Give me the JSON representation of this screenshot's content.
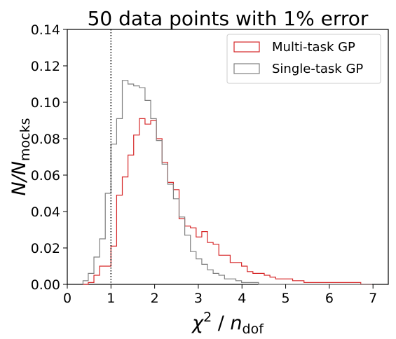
{
  "chart_data": {
    "type": "histogram",
    "title": "50 data points with 1% error",
    "xlabel": "χ² / n_dof",
    "ylabel": "N/N_mocks",
    "xlim": [
      0,
      7.35
    ],
    "ylim": [
      0,
      0.14
    ],
    "xticks": [
      "0",
      "1",
      "2",
      "3",
      "4",
      "5",
      "6",
      "7"
    ],
    "yticks": [
      "0.00",
      "0.02",
      "0.04",
      "0.06",
      "0.08",
      "0.10",
      "0.12",
      "0.14"
    ],
    "grid": false,
    "legend_position": "top-right",
    "reference_line": {
      "x": 1,
      "style": "dotted"
    },
    "bin_edges": [
      0.36,
      0.48,
      0.61,
      0.74,
      0.87,
      1.0,
      1.13,
      1.26,
      1.39,
      1.52,
      1.65,
      1.78,
      1.91,
      2.04,
      2.17,
      2.3,
      2.43,
      2.56,
      2.69,
      2.82,
      2.95,
      3.08,
      3.21,
      3.34,
      3.47,
      3.6,
      3.73,
      3.86,
      3.99,
      4.12,
      4.25,
      4.38,
      4.51,
      4.64,
      4.77,
      4.9,
      5.03,
      5.16,
      5.29,
      5.42,
      5.55,
      5.68,
      5.81,
      5.94,
      6.07,
      6.2,
      6.33,
      6.46,
      6.59,
      6.72,
      6.85,
      6.98
    ],
    "series": [
      {
        "name": "Multi-task GP",
        "color": "#d62728",
        "values": [
          0.0,
          0.001,
          0.005,
          0.01,
          0.01,
          0.021,
          0.049,
          0.059,
          0.071,
          0.082,
          0.091,
          0.088,
          0.09,
          0.08,
          0.067,
          0.056,
          0.052,
          0.036,
          0.032,
          0.031,
          0.026,
          0.029,
          0.023,
          0.022,
          0.016,
          0.016,
          0.012,
          0.012,
          0.01,
          0.007,
          0.006,
          0.006,
          0.005,
          0.004,
          0.003,
          0.003,
          0.003,
          0.002,
          0.002,
          0.001,
          0.001,
          0.001,
          0.001,
          0.001,
          0.001,
          0.001,
          0.001,
          0.001,
          0.001,
          0.0,
          0.0
        ]
      },
      {
        "name": "Single-task GP",
        "color": "#808080",
        "values": [
          0.002,
          0.006,
          0.015,
          0.025,
          0.05,
          0.077,
          0.091,
          0.112,
          0.11,
          0.109,
          0.108,
          0.101,
          0.091,
          0.079,
          0.066,
          0.055,
          0.047,
          0.037,
          0.027,
          0.018,
          0.014,
          0.011,
          0.008,
          0.006,
          0.005,
          0.003,
          0.003,
          0.002,
          0.001,
          0.001,
          0.001,
          0.0,
          0.0,
          0.0,
          0.0,
          0.0,
          0.0,
          0.0,
          0.0,
          0.0,
          0.0,
          0.0,
          0.0,
          0.0,
          0.0,
          0.0,
          0.0,
          0.0,
          0.0,
          0.0,
          0.0
        ]
      }
    ]
  }
}
